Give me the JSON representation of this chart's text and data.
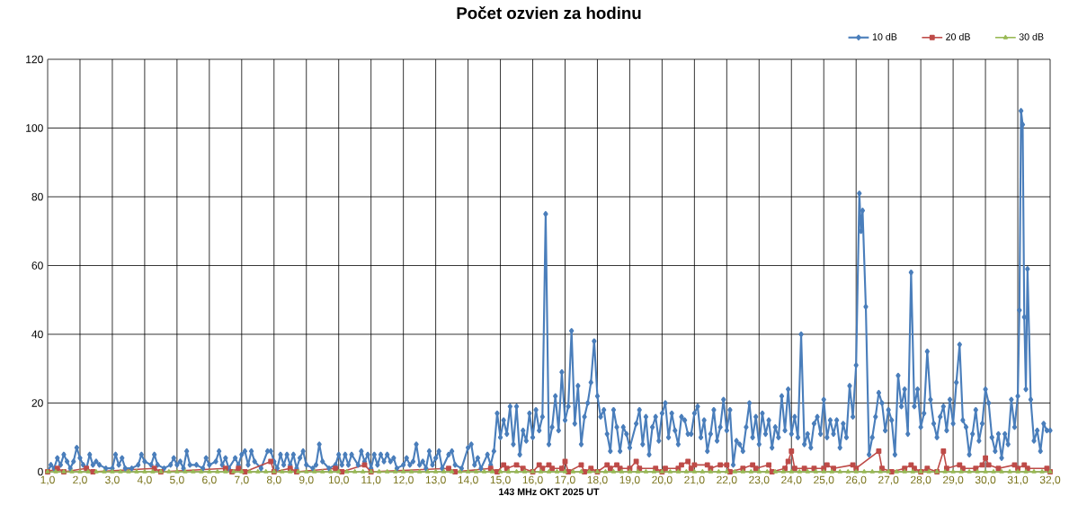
{
  "chart_data": {
    "type": "line",
    "title": "Počet ozvien za hodinu",
    "xlabel": "143 MHz OKT  2025  UT",
    "xlim": [
      1,
      32
    ],
    "ylim": [
      0,
      120
    ],
    "yticks": [
      0,
      20,
      40,
      60,
      80,
      100,
      120
    ],
    "xticks": [
      {
        "value": 1,
        "label": "1,0"
      },
      {
        "value": 2,
        "label": "2,0"
      },
      {
        "value": 3,
        "label": "3,0"
      },
      {
        "value": 4,
        "label": "4,0"
      },
      {
        "value": 5,
        "label": "5,0"
      },
      {
        "value": 6,
        "label": "6,0"
      },
      {
        "value": 7,
        "label": "7,0"
      },
      {
        "value": 8,
        "label": "8,0"
      },
      {
        "value": 9,
        "label": "9,0"
      },
      {
        "value": 10,
        "label": "10,0"
      },
      {
        "value": 11,
        "label": "11,0"
      },
      {
        "value": 12,
        "label": "12,0"
      },
      {
        "value": 13,
        "label": "13,0"
      },
      {
        "value": 14,
        "label": "14,0"
      },
      {
        "value": 15,
        "label": "15,0"
      },
      {
        "value": 16,
        "label": "16,0"
      },
      {
        "value": 17,
        "label": "17,0"
      },
      {
        "value": 18,
        "label": "18,0"
      },
      {
        "value": 19,
        "label": "19,0"
      },
      {
        "value": 20,
        "label": "20,0"
      },
      {
        "value": 21,
        "label": "21,0"
      },
      {
        "value": 22,
        "label": "22,0"
      },
      {
        "value": 23,
        "label": "23,0"
      },
      {
        "value": 24,
        "label": "24,0"
      },
      {
        "value": 25,
        "label": "25,0"
      },
      {
        "value": 26,
        "label": "26,0"
      },
      {
        "value": 27,
        "label": "27,0"
      },
      {
        "value": 28,
        "label": "28,0"
      },
      {
        "value": 29,
        "label": "29,0"
      },
      {
        "value": 30,
        "label": "30,0"
      },
      {
        "value": 31,
        "label": "31,0"
      },
      {
        "value": 32,
        "label": "32,0"
      }
    ],
    "grid": true,
    "legend": "top right",
    "series": [
      {
        "name": "10 dB",
        "color": "#4a7ebb",
        "marker": "diamond",
        "x": [
          1.0,
          1.1,
          1.2,
          1.3,
          1.4,
          1.5,
          1.6,
          1.7,
          1.8,
          1.9,
          2.0,
          2.1,
          2.2,
          2.3,
          2.4,
          2.5,
          2.6,
          2.8,
          3.0,
          3.1,
          3.2,
          3.3,
          3.4,
          3.6,
          3.8,
          3.9,
          4.0,
          4.2,
          4.3,
          4.4,
          4.6,
          4.8,
          4.9,
          5.0,
          5.1,
          5.2,
          5.3,
          5.4,
          5.6,
          5.8,
          5.9,
          6.0,
          6.2,
          6.3,
          6.4,
          6.5,
          6.6,
          6.8,
          6.9,
          7.0,
          7.1,
          7.2,
          7.3,
          7.4,
          7.6,
          7.8,
          7.9,
          8.0,
          8.1,
          8.2,
          8.3,
          8.4,
          8.5,
          8.6,
          8.7,
          8.8,
          8.9,
          9.0,
          9.2,
          9.3,
          9.4,
          9.5,
          9.7,
          9.9,
          10.0,
          10.1,
          10.2,
          10.3,
          10.4,
          10.6,
          10.7,
          10.8,
          10.9,
          11.0,
          11.1,
          11.2,
          11.3,
          11.4,
          11.5,
          11.6,
          11.7,
          11.8,
          12.0,
          12.1,
          12.2,
          12.3,
          12.4,
          12.5,
          12.6,
          12.7,
          12.8,
          12.9,
          13.0,
          13.1,
          13.2,
          13.4,
          13.5,
          13.6,
          13.8,
          14.0,
          14.1,
          14.2,
          14.3,
          14.4,
          14.6,
          14.7,
          14.8,
          14.9,
          15.0,
          15.1,
          15.2,
          15.3,
          15.4,
          15.5,
          15.6,
          15.7,
          15.8,
          15.9,
          16.0,
          16.1,
          16.2,
          16.3,
          16.4,
          16.5,
          16.6,
          16.7,
          16.8,
          16.9,
          17.0,
          17.1,
          17.2,
          17.3,
          17.4,
          17.5,
          17.6,
          17.7,
          17.8,
          17.9,
          18.0,
          18.1,
          18.2,
          18.3,
          18.4,
          18.5,
          18.6,
          18.7,
          18.8,
          18.9,
          19.0,
          19.2,
          19.3,
          19.4,
          19.5,
          19.6,
          19.7,
          19.8,
          19.9,
          20.0,
          20.1,
          20.2,
          20.3,
          20.4,
          20.5,
          20.6,
          20.7,
          20.8,
          20.9,
          21.0,
          21.1,
          21.2,
          21.3,
          21.4,
          21.5,
          21.6,
          21.7,
          21.8,
          21.9,
          22.0,
          22.1,
          22.2,
          22.3,
          22.4,
          22.5,
          22.6,
          22.7,
          22.8,
          22.9,
          23.0,
          23.1,
          23.2,
          23.3,
          23.4,
          23.5,
          23.6,
          23.7,
          23.8,
          23.9,
          24.0,
          24.1,
          24.2,
          24.3,
          24.4,
          24.5,
          24.6,
          24.7,
          24.8,
          24.9,
          25.0,
          25.1,
          25.2,
          25.3,
          25.4,
          25.5,
          25.6,
          25.7,
          25.8,
          25.9,
          26.0,
          26.1,
          26.15,
          26.2,
          26.3,
          26.4,
          26.5,
          26.6,
          26.7,
          26.8,
          26.9,
          27.0,
          27.1,
          27.2,
          27.3,
          27.4,
          27.5,
          27.6,
          27.7,
          27.8,
          27.9,
          28.0,
          28.1,
          28.2,
          28.3,
          28.4,
          28.5,
          28.6,
          28.7,
          28.8,
          28.9,
          29.0,
          29.1,
          29.2,
          29.3,
          29.4,
          29.5,
          29.6,
          29.7,
          29.8,
          29.9,
          30.0,
          30.1,
          30.2,
          30.3,
          30.4,
          30.5,
          30.6,
          30.7,
          30.8,
          30.9,
          31.0,
          31.05,
          31.1,
          31.15,
          31.2,
          31.25,
          31.3,
          31.4,
          31.5,
          31.6,
          31.7,
          31.8,
          31.9,
          32.0
        ],
        "values": [
          0,
          2,
          1,
          4,
          2,
          5,
          3,
          1,
          3,
          7,
          4,
          2,
          1,
          5,
          2,
          3,
          2,
          1,
          1,
          5,
          2,
          4,
          1,
          1,
          2,
          5,
          3,
          2,
          5,
          2,
          1,
          2,
          4,
          2,
          3,
          1,
          6,
          2,
          2,
          1,
          4,
          2,
          3,
          6,
          2,
          4,
          1,
          4,
          2,
          5,
          6,
          2,
          6,
          3,
          1,
          6,
          6,
          3,
          1,
          5,
          2,
          5,
          2,
          5,
          1,
          4,
          6,
          2,
          1,
          2,
          8,
          3,
          1,
          2,
          5,
          2,
          5,
          2,
          5,
          2,
          6,
          3,
          5,
          1,
          5,
          2,
          5,
          3,
          5,
          3,
          4,
          1,
          2,
          4,
          2,
          3,
          8,
          2,
          3,
          1,
          6,
          2,
          4,
          6,
          1,
          5,
          6,
          2,
          1,
          7,
          8,
          2,
          4,
          1,
          5,
          2,
          6,
          17,
          10,
          15,
          11,
          19,
          8,
          19,
          5,
          12,
          9,
          17,
          10,
          18,
          12,
          16,
          75,
          8,
          13,
          22,
          12,
          29,
          15,
          19,
          41,
          14,
          25,
          8,
          16,
          20,
          26,
          38,
          22,
          16,
          18,
          11,
          6,
          18,
          13,
          6,
          13,
          11,
          7,
          14,
          18,
          8,
          16,
          5,
          13,
          16,
          9,
          17,
          20,
          10,
          17,
          12,
          8,
          16,
          15,
          11,
          11,
          17,
          19,
          10,
          15,
          6,
          11,
          18,
          9,
          13,
          21,
          12,
          18,
          2,
          9,
          8,
          6,
          13,
          20,
          10,
          16,
          8,
          17,
          11,
          15,
          7,
          13,
          10,
          22,
          12,
          24,
          11,
          16,
          10,
          40,
          8,
          11,
          7,
          14,
          16,
          11,
          21,
          10,
          15,
          11,
          15,
          7,
          14,
          10,
          25,
          16,
          31,
          81,
          70,
          76,
          48,
          5,
          10,
          16,
          23,
          20,
          12,
          18,
          15,
          5,
          28,
          19,
          24,
          11,
          58,
          19,
          24,
          13,
          17,
          35,
          21,
          14,
          10,
          16,
          19,
          12,
          21,
          14,
          26,
          37,
          15,
          13,
          5,
          11,
          18,
          9,
          14,
          24,
          20,
          10,
          6,
          11,
          4,
          11,
          8,
          21,
          13,
          22,
          47,
          105,
          101,
          45,
          24,
          59,
          21,
          9,
          12,
          6,
          14,
          12,
          12
        ]
      },
      {
        "name": "20 dB",
        "color": "#be4b48",
        "marker": "square",
        "x": [
          1.0,
          1.3,
          1.5,
          2.2,
          2.4,
          4.3,
          4.5,
          6.5,
          6.7,
          6.9,
          7.1,
          7.9,
          8.0,
          8.5,
          8.7,
          9.9,
          10.1,
          10.8,
          11.0,
          13.4,
          13.6,
          14.7,
          14.9,
          15.1,
          15.2,
          15.5,
          15.7,
          16.0,
          16.2,
          16.3,
          16.5,
          16.6,
          16.9,
          17.0,
          17.1,
          17.5,
          17.6,
          17.8,
          18.0,
          18.3,
          18.4,
          18.6,
          18.7,
          19.0,
          19.2,
          19.3,
          19.8,
          20.0,
          20.1,
          20.5,
          20.6,
          20.8,
          20.9,
          21.0,
          21.4,
          21.5,
          21.8,
          22.0,
          22.1,
          22.5,
          22.8,
          22.9,
          23.3,
          23.4,
          23.8,
          23.9,
          24.0,
          24.1,
          24.4,
          24.7,
          25.0,
          25.1,
          25.3,
          25.9,
          26.0,
          26.7,
          26.8,
          27.1,
          27.5,
          27.7,
          27.8,
          28.0,
          28.2,
          28.5,
          28.7,
          28.8,
          29.2,
          29.3,
          29.7,
          29.9,
          30.0,
          30.1,
          30.4,
          30.9,
          31.0,
          31.2,
          31.3,
          31.9,
          32.0
        ],
        "values": [
          0,
          1,
          0,
          1,
          0,
          1,
          0,
          1,
          0,
          1,
          0,
          3,
          0,
          1,
          0,
          1,
          0,
          2,
          0,
          1,
          0,
          1,
          0,
          2,
          1,
          2,
          1,
          0,
          2,
          1,
          2,
          1,
          1,
          3,
          0,
          2,
          0,
          1,
          0,
          2,
          1,
          2,
          1,
          1,
          3,
          1,
          1,
          0,
          1,
          1,
          2,
          3,
          1,
          2,
          2,
          1,
          2,
          2,
          0,
          1,
          2,
          1,
          2,
          0,
          1,
          3,
          6,
          1,
          1,
          1,
          1,
          2,
          1,
          2,
          1,
          6,
          1,
          0,
          1,
          2,
          1,
          0,
          1,
          0,
          6,
          1,
          2,
          1,
          1,
          2,
          4,
          2,
          1,
          2,
          1,
          2,
          1,
          1,
          0
        ]
      },
      {
        "name": "30 dB",
        "color": "#98b954",
        "marker": "triangle",
        "x": [
          1,
          1.25,
          1.5,
          1.75,
          2,
          2.25,
          2.5,
          2.75,
          3,
          3.25,
          3.5,
          3.75,
          4,
          4.25,
          4.5,
          4.75,
          5,
          5.25,
          5.5,
          5.75,
          6,
          6.25,
          6.5,
          6.75,
          7,
          7.25,
          7.5,
          7.75,
          8,
          8.25,
          8.5,
          8.75,
          9,
          9.25,
          9.5,
          9.75,
          10,
          10.25,
          10.5,
          10.75,
          11,
          11.25,
          11.5,
          11.75,
          12,
          12.25,
          12.5,
          12.75,
          13,
          13.25,
          13.5,
          13.75,
          14,
          14.25,
          14.5,
          14.75,
          15,
          15.25,
          15.5,
          15.75,
          16,
          16.25,
          16.5,
          16.75,
          17,
          17.25,
          17.5,
          17.75,
          18,
          18.25,
          18.5,
          18.75,
          19,
          19.25,
          19.5,
          19.75,
          20,
          20.25,
          20.5,
          20.75,
          21,
          21.25,
          21.5,
          21.75,
          22,
          22.25,
          22.5,
          22.75,
          23,
          23.25,
          23.5,
          23.75,
          24,
          24.25,
          24.5,
          24.75,
          25,
          25.25,
          25.5,
          25.75,
          26,
          26.25,
          26.5,
          26.75,
          27,
          27.25,
          27.5,
          27.75,
          28,
          28.25,
          28.5,
          28.75,
          29,
          29.25,
          29.5,
          29.75,
          30,
          30.25,
          30.5,
          30.75,
          31,
          31.25,
          31.5,
          31.75,
          32
        ],
        "values": [
          0,
          0,
          0,
          0,
          0,
          0,
          0,
          0,
          0,
          0,
          0,
          0,
          0,
          0,
          0,
          0,
          0,
          0,
          0,
          0,
          0,
          0,
          0,
          0,
          0,
          0,
          0,
          0,
          0,
          0,
          0,
          0,
          0,
          0,
          0,
          0,
          0,
          0,
          0,
          0,
          0,
          0,
          0,
          0,
          0,
          0,
          0,
          0,
          0,
          0,
          0,
          0,
          0,
          0,
          0,
          0,
          0,
          0,
          0,
          0,
          0,
          0,
          0,
          0,
          0,
          0,
          0,
          0,
          0,
          0,
          0,
          0,
          0,
          0,
          0,
          0,
          0,
          0,
          0,
          0,
          0,
          0,
          0,
          0,
          0,
          0,
          0,
          0,
          0,
          0,
          0,
          0,
          0,
          0,
          0,
          0,
          0,
          0,
          0,
          0,
          0,
          0,
          0,
          0,
          0,
          0,
          0,
          0,
          0,
          0,
          0,
          0,
          0,
          0,
          0,
          0,
          0,
          0,
          0,
          0,
          0,
          0,
          0,
          0,
          0
        ]
      }
    ]
  }
}
